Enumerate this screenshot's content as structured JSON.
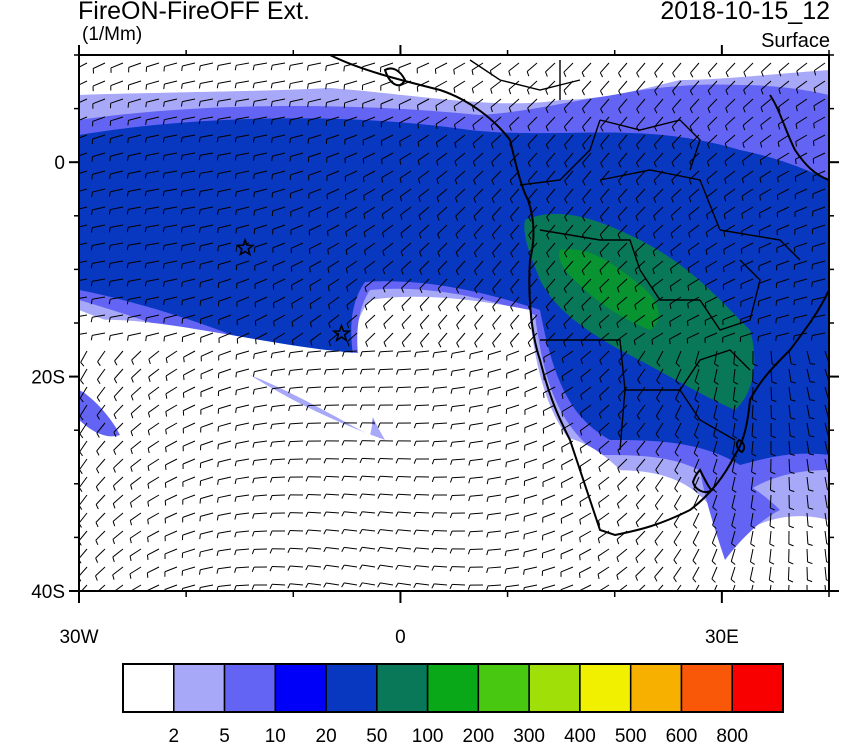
{
  "header": {
    "title": "FireON-FireOFF Ext.",
    "units": "(1/Mm)",
    "datetime": "2018-10-15_12",
    "level": "Surface"
  },
  "axes": {
    "y_ticks": [
      {
        "label": "0",
        "lat": 0
      },
      {
        "label": "20S",
        "lat": -20
      },
      {
        "label": "40S",
        "lat": -40
      }
    ],
    "x_ticks": [
      {
        "label": "30W",
        "lon": -30
      },
      {
        "label": "0",
        "lon": 0
      },
      {
        "label": "30E",
        "lon": 30
      }
    ],
    "lon_range": [
      -30,
      40
    ],
    "lat_range": [
      -40,
      10
    ]
  },
  "colorbar": {
    "colors": [
      "#ffffff",
      "#a8a8f8",
      "#6464f4",
      "#0000f8",
      "#0838c0",
      "#087858",
      "#08a818",
      "#48c810",
      "#a0e008",
      "#f0f000",
      "#f8b000",
      "#f85808",
      "#f80000"
    ],
    "labels": [
      "2",
      "5",
      "10",
      "20",
      "50",
      "100",
      "200",
      "300",
      "400",
      "500",
      "600",
      "800"
    ]
  },
  "markers": [
    {
      "name": "star-marker-north",
      "lon": -14.5,
      "lat": -8
    },
    {
      "name": "star-marker-south",
      "lon": -5.5,
      "lat": -16
    }
  ]
}
